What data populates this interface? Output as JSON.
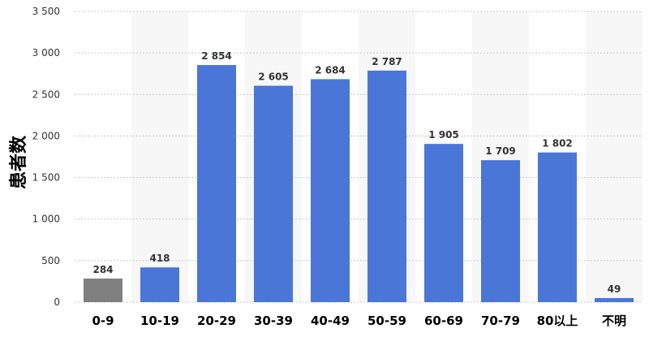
{
  "chart_data": {
    "type": "bar",
    "categories": [
      "0-9",
      "10-19",
      "20-29",
      "30-39",
      "40-49",
      "50-59",
      "60-69",
      "70-79",
      "80以上",
      "不明"
    ],
    "values": [
      284,
      418,
      2854,
      2605,
      2684,
      2787,
      1905,
      1709,
      1802,
      49
    ],
    "value_labels": [
      "284",
      "418",
      "2 854",
      "2 605",
      "2 684",
      "2 787",
      "1 905",
      "1 709",
      "1 802",
      "49"
    ],
    "bar_colors": [
      "#808080",
      "#4a76d8",
      "#4a76d8",
      "#4a76d8",
      "#4a76d8",
      "#4a76d8",
      "#4a76d8",
      "#4a76d8",
      "#4a76d8",
      "#4a76d8"
    ],
    "ylabel": "患者数",
    "xlabel": "",
    "ylim": [
      0,
      3500
    ],
    "yticks": [
      0,
      500,
      1000,
      1500,
      2000,
      2500,
      3000,
      3500
    ],
    "ytick_labels": [
      "0",
      "500",
      "1 000",
      "1 500",
      "2 000",
      "2 500",
      "3 000",
      "3 500"
    ],
    "grid": true,
    "alternating_band_color": "#f7f7f7",
    "grid_color": "#c8c8c8"
  }
}
